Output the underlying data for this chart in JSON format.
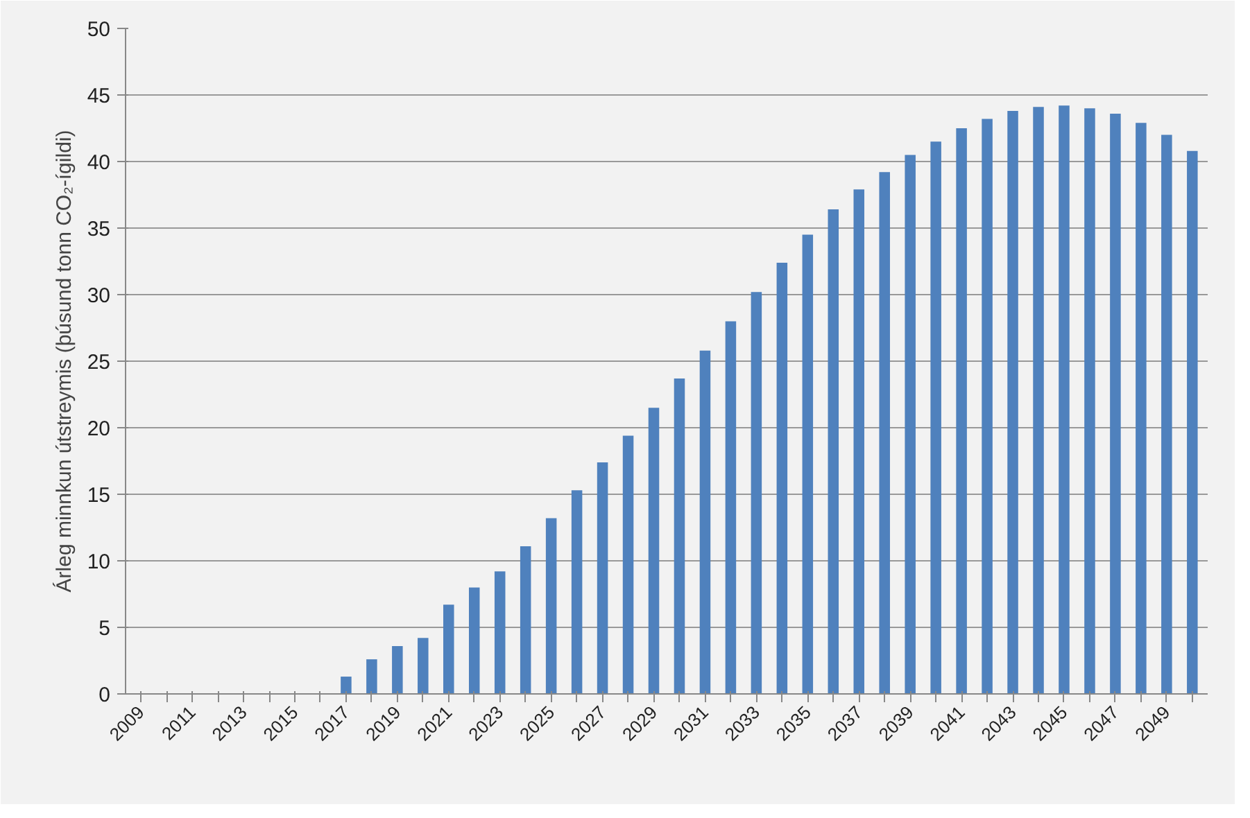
{
  "chart_data": {
    "type": "bar",
    "ylabel": "Árleg minnkun útstreymis (þúsund tonn CO₂-ígildi)",
    "categories": [
      "2009",
      null,
      "2011",
      null,
      "2013",
      null,
      "2015",
      null,
      "2017",
      null,
      "2019",
      null,
      "2021",
      null,
      "2023",
      null,
      "2025",
      null,
      "2027",
      null,
      "2029",
      null,
      "2031",
      null,
      "2033",
      null,
      "2035",
      null,
      "2037",
      null,
      "2039",
      null,
      "2041",
      null,
      "2043",
      null,
      "2045",
      null,
      "2047",
      null,
      "2049",
      null
    ],
    "values": [
      0,
      0,
      0,
      0,
      0,
      0,
      0,
      0,
      1.3,
      2.6,
      3.6,
      4.2,
      6.7,
      8.0,
      9.2,
      11.1,
      13.2,
      15.3,
      17.4,
      19.4,
      21.5,
      23.7,
      25.8,
      28.0,
      30.2,
      32.4,
      34.5,
      36.4,
      37.9,
      39.2,
      40.5,
      41.5,
      42.5,
      43.2,
      43.8,
      44.1,
      44.2,
      44.0,
      43.6,
      42.9,
      42.0,
      40.8
    ],
    "color": "#4f81bd",
    "ylim": [
      0,
      50
    ],
    "yticks": [
      0,
      5,
      10,
      15,
      20,
      25,
      30,
      35,
      40,
      45,
      50
    ],
    "grid": "y"
  }
}
